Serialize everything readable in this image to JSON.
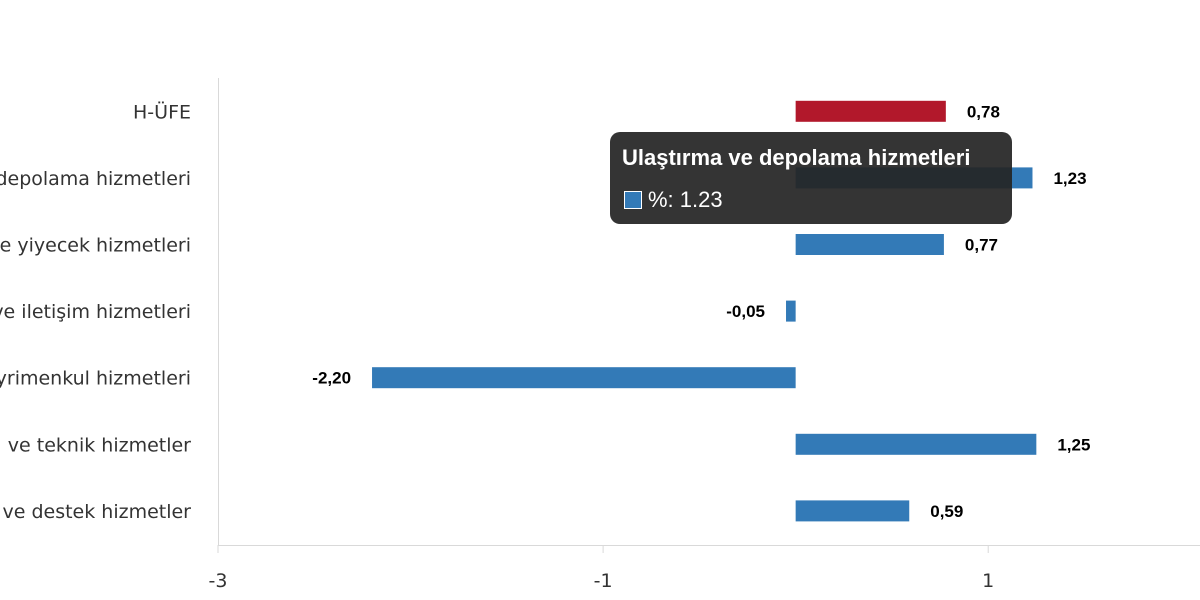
{
  "chart_data": {
    "type": "bar",
    "orientation": "horizontal",
    "categories": [
      "H-ÜFE",
      "Ulaştırma ve depolama hizmetleri",
      "Konaklama ve yiyecek hizmetleri",
      "Bilgi ve iletişim hizmetleri",
      "Gayrimenkul hizmetleri",
      "Mesleki, bilimsel ve teknik hizmetler",
      "İdari ve destek hizmetler"
    ],
    "values": [
      0.78,
      1.23,
      0.77,
      -0.05,
      -2.2,
      1.25,
      0.59
    ],
    "value_labels": [
      "0,78",
      "1,23",
      "0,77",
      "-0,05",
      "-2,20",
      "1,25",
      "0,59"
    ],
    "bar_colors": [
      "#b2182b",
      "#337ab7",
      "#337ab7",
      "#337ab7",
      "#337ab7",
      "#337ab7",
      "#337ab7"
    ],
    "xlim": [
      -3,
      2.1
    ],
    "xticks": [
      -3,
      -1,
      1
    ],
    "grid": false,
    "title": "",
    "xlabel": "",
    "ylabel": ""
  },
  "tooltip": {
    "title": "Ulaştırma ve depolama hizmetleri",
    "swatch_color": "#337ab7",
    "text": "%: 1.23"
  }
}
